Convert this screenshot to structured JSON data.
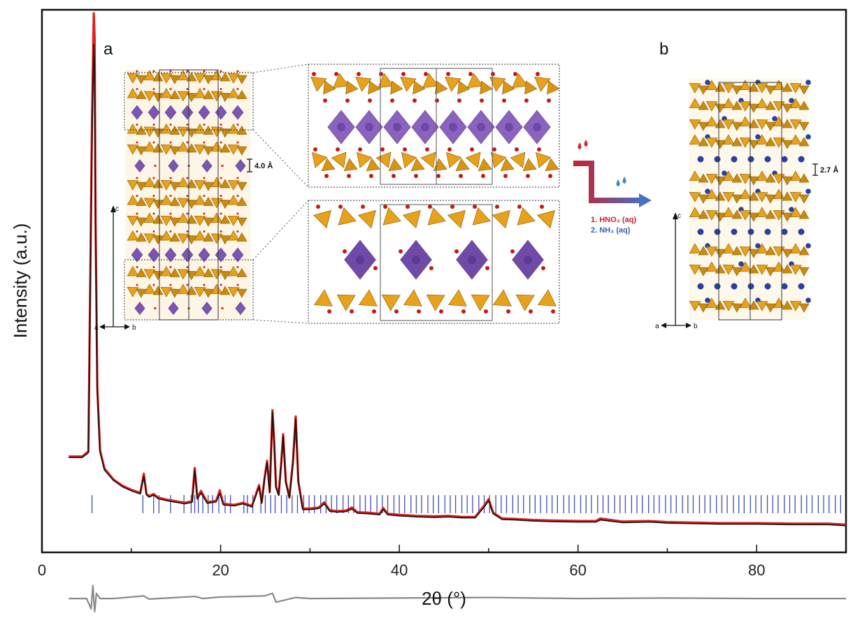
{
  "chart_data": {
    "type": "line",
    "xlabel": "2θ (°)",
    "ylabel": "Intensity (a.u.)",
    "xlim": [
      0,
      90
    ],
    "x_ticks": [
      "0",
      "20",
      "40",
      "60",
      "80"
    ],
    "grid": false,
    "series": [
      {
        "role": "observed",
        "color": "#e0201b",
        "x": [
          3.0,
          4.5,
          5.2,
          5.6,
          5.8,
          5.9,
          6.0,
          6.2,
          6.5,
          7.0,
          8.0,
          9.0,
          10.0,
          11.0,
          11.4,
          11.7,
          12.0,
          12.5,
          13.0,
          14.0,
          15.0,
          16.0,
          16.8,
          17.1,
          17.4,
          17.8,
          18.5,
          19.5,
          19.9,
          20.3,
          21.5,
          22.5,
          23.5,
          24.3,
          24.6,
          24.9,
          25.2,
          25.5,
          25.8,
          26.0,
          26.2,
          26.5,
          26.8,
          27.0,
          27.3,
          27.7,
          28.1,
          28.4,
          28.7,
          29.2,
          30.0,
          31.0,
          31.6,
          32.2,
          33.0,
          34.0,
          34.7,
          35.3,
          36.5,
          37.8,
          38.2,
          38.7,
          40.0,
          42.0,
          44.0,
          45.5,
          47.0,
          48.5,
          49.6,
          50.0,
          50.5,
          51.5,
          53.0,
          55.0,
          57.0,
          60.0,
          62.0,
          62.5,
          65.0,
          68.0,
          70.0,
          73.0,
          76.0,
          80.0,
          84.0,
          88.0,
          90.0
        ],
        "y": [
          14.8,
          14.8,
          15.8,
          80,
          100,
          95,
          60,
          28,
          16,
          12.5,
          10.4,
          9.2,
          8.4,
          7.8,
          11.5,
          7.6,
          7.2,
          7.6,
          6.9,
          6.5,
          6.2,
          5.9,
          6.2,
          12.6,
          6.8,
          8.2,
          6.0,
          6.3,
          8.3,
          5.7,
          5.5,
          5.9,
          5.3,
          9.3,
          6.0,
          10.5,
          14.0,
          8.0,
          23.7,
          17.5,
          9.0,
          7.5,
          14.0,
          19.1,
          10.0,
          7.0,
          14.0,
          22.5,
          10.0,
          4.8,
          4.8,
          5.0,
          6.0,
          4.5,
          4.3,
          4.4,
          5.0,
          4.1,
          4.0,
          3.8,
          4.9,
          3.8,
          3.6,
          3.4,
          3.3,
          3.4,
          3.2,
          3.2,
          5.6,
          6.6,
          4.0,
          2.9,
          2.8,
          2.6,
          2.5,
          2.4,
          2.4,
          2.9,
          2.3,
          2.4,
          2.2,
          2.1,
          2.0,
          2.0,
          1.9,
          1.9,
          1.7
        ]
      },
      {
        "role": "calculated",
        "color": "#111111",
        "x": [
          3.0,
          4.5,
          5.2,
          5.6,
          5.8,
          5.9,
          6.0,
          6.2,
          6.5,
          7.0,
          8.0,
          9.0,
          10.0,
          11.0,
          11.4,
          11.7,
          12.0,
          12.5,
          13.0,
          14.0,
          15.0,
          16.0,
          16.8,
          17.1,
          17.4,
          17.8,
          18.5,
          19.5,
          19.9,
          20.3,
          21.5,
          22.5,
          23.5,
          24.3,
          24.6,
          24.9,
          25.2,
          25.5,
          25.8,
          26.0,
          26.2,
          26.5,
          26.8,
          27.0,
          27.3,
          27.7,
          28.1,
          28.4,
          28.7,
          29.2,
          30.0,
          31.0,
          31.6,
          32.2,
          33.0,
          34.0,
          34.7,
          35.3,
          36.5,
          37.8,
          38.2,
          38.7,
          40.0,
          42.0,
          44.0,
          45.5,
          47.0,
          48.5,
          49.6,
          50.0,
          50.5,
          51.5,
          53.0,
          55.0,
          57.0,
          60.0,
          62.0,
          62.5,
          65.0,
          68.0,
          70.0,
          73.0,
          76.0,
          80.0,
          84.0,
          88.0,
          90.0
        ],
        "y": [
          14.6,
          14.6,
          15.5,
          75,
          94,
          89,
          57,
          27,
          15.6,
          12.2,
          10.2,
          9.0,
          8.2,
          7.6,
          11.0,
          7.4,
          7.0,
          7.4,
          6.7,
          6.3,
          6.0,
          5.7,
          6.0,
          12.2,
          6.6,
          7.8,
          5.8,
          6.1,
          7.7,
          5.5,
          5.3,
          5.7,
          5.1,
          9.0,
          5.8,
          10.2,
          13.6,
          7.8,
          23.3,
          17.1,
          8.8,
          7.3,
          13.6,
          18.7,
          9.8,
          6.8,
          13.6,
          22.1,
          9.8,
          4.6,
          4.6,
          4.8,
          5.7,
          4.3,
          4.1,
          4.2,
          4.7,
          3.9,
          3.8,
          3.6,
          4.6,
          3.6,
          3.4,
          3.2,
          3.1,
          3.2,
          3.0,
          3.0,
          5.3,
          6.3,
          3.8,
          2.7,
          2.6,
          2.4,
          2.3,
          2.2,
          2.2,
          2.6,
          2.1,
          2.2,
          2.0,
          1.9,
          1.8,
          1.8,
          1.7,
          1.7,
          1.5
        ]
      },
      {
        "role": "difference",
        "color": "#8a8a8a",
        "x": [
          3.0,
          5.0,
          5.5,
          5.7,
          5.9,
          6.1,
          6.5,
          8.0,
          11.4,
          12.0,
          17.1,
          18.0,
          20.0,
          24.9,
          25.8,
          26.2,
          28.4,
          30.0,
          40.0,
          50.0,
          60.0,
          70.0,
          80.0,
          90.0
        ],
        "y": [
          -12.5,
          -12.5,
          -14.5,
          -10.0,
          -15.0,
          -11.5,
          -12.5,
          -12.5,
          -12.0,
          -12.6,
          -12.1,
          -12.5,
          -12.2,
          -12.0,
          -11.5,
          -13.2,
          -12.3,
          -12.5,
          -12.4,
          -12.3,
          -12.5,
          -12.4,
          -12.5,
          -12.5
        ]
      }
    ],
    "bragg_reflections": {
      "color": "#3f4fb3",
      "positions": [
        5.6,
        11.3,
        12.5,
        13.1,
        14.4,
        15.9,
        16.7,
        17.1,
        17.5,
        18.0,
        18.6,
        19.1,
        19.8,
        20.5,
        21.1,
        22.6,
        23.0,
        23.6,
        24.5,
        25.0,
        25.6,
        26.1,
        26.8,
        27.4,
        28.0,
        28.6,
        29.3,
        29.9,
        30.5,
        31.2,
        31.8,
        32.4,
        33.0,
        33.7,
        34.3,
        34.9,
        35.6,
        36.2,
        36.8,
        37.5,
        38.1,
        38.7,
        39.4,
        40.0,
        40.6,
        41.3,
        41.9,
        42.5,
        43.2,
        43.8,
        44.4,
        45.1,
        45.7,
        46.3,
        47.0,
        47.6,
        48.2,
        48.9,
        49.5,
        50.1,
        50.8,
        51.4,
        52.0,
        52.7,
        53.3,
        53.9,
        54.6,
        55.2,
        55.8,
        56.5,
        57.1,
        57.7,
        58.4,
        59.0,
        59.6,
        60.3,
        60.9,
        61.5,
        62.2,
        62.8,
        63.4,
        64.1,
        64.7,
        65.3,
        66.0,
        66.6,
        67.2,
        67.9,
        68.5,
        69.1,
        69.8,
        70.4,
        71.0,
        71.7,
        72.3,
        72.9,
        73.6,
        74.2,
        74.8,
        75.5,
        76.1,
        76.7,
        77.4,
        78.0,
        78.6,
        79.3,
        79.9,
        80.5,
        81.2,
        81.8,
        82.4,
        83.1,
        83.7,
        84.3,
        85.0,
        85.6,
        86.2,
        86.9,
        87.5,
        88.1,
        88.8,
        89.4
      ]
    },
    "annotations": {
      "panel_a": "a",
      "panel_b": "b",
      "spacing_a": "4.0 Å",
      "spacing_b": "2.7 Å",
      "step1": "1. HNO₃ (aq)",
      "step2": "2. NH₃ (aq)",
      "axis_c": "c",
      "axis_a": "a",
      "axis_b": "b"
    }
  }
}
